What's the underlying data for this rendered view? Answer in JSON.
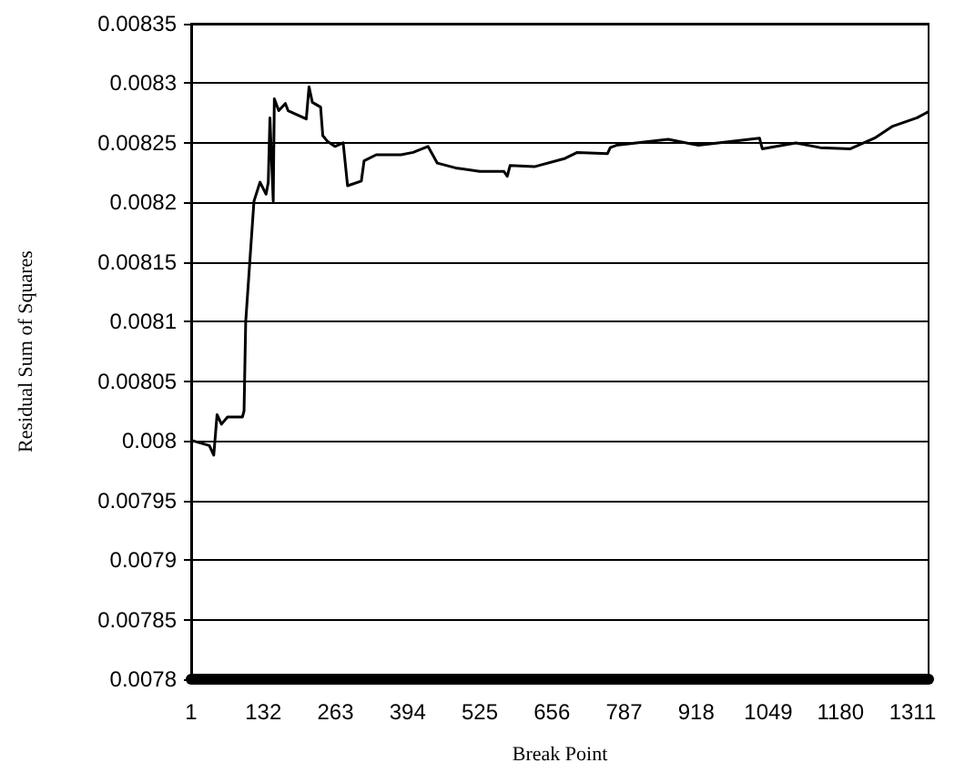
{
  "chart_data": {
    "type": "line",
    "xlabel": "Break Point",
    "ylabel": "Residual Sum of Squares",
    "x": [
      4,
      34,
      42,
      48,
      56,
      67,
      94,
      97,
      100,
      108,
      115,
      126,
      137,
      141,
      144,
      150,
      152,
      160,
      172,
      177,
      210,
      215,
      221,
      236,
      240,
      249,
      262,
      277,
      285,
      310,
      315,
      337,
      382,
      404,
      431,
      448,
      481,
      525,
      569,
      575,
      580,
      624,
      680,
      702,
      757,
      762,
      773,
      867,
      922,
      1033,
      1038,
      1099,
      1143,
      1198,
      1242,
      1275,
      1319,
      1339
    ],
    "series": [
      {
        "color": "#000000",
        "values": [
          0.008,
          0.007996,
          0.007988,
          0.008022,
          0.008014,
          0.00802,
          0.00802,
          0.008025,
          0.0081,
          0.008154,
          0.008201,
          0.008217,
          0.008207,
          0.008217,
          0.008271,
          0.008201,
          0.008287,
          0.008277,
          0.008283,
          0.008277,
          0.00827,
          0.008297,
          0.008284,
          0.00828,
          0.008256,
          0.008251,
          0.008247,
          0.00825,
          0.008214,
          0.008218,
          0.008235,
          0.00824,
          0.00824,
          0.008242,
          0.008247,
          0.008233,
          0.008229,
          0.008226,
          0.008226,
          0.008222,
          0.008231,
          0.00823,
          0.008237,
          0.008242,
          0.008241,
          0.008246,
          0.008248,
          0.008253,
          0.008248,
          0.008254,
          0.008245,
          0.00825,
          0.008246,
          0.008245,
          0.008254,
          0.008264,
          0.008271,
          0.008276
        ]
      }
    ],
    "xlim": [
      1,
      1340
    ],
    "xticks": [
      1,
      132,
      263,
      394,
      525,
      656,
      787,
      918,
      1049,
      1180,
      1311
    ],
    "ylim": [
      0.0078,
      0.00835
    ],
    "yticks": [
      0.0078,
      0.00785,
      0.0079,
      0.00795,
      0.008,
      0.00805,
      0.0081,
      0.00815,
      0.0082,
      0.00825,
      0.0083,
      0.00835
    ],
    "grid": "y",
    "marker": "none",
    "line_style": "solid"
  }
}
